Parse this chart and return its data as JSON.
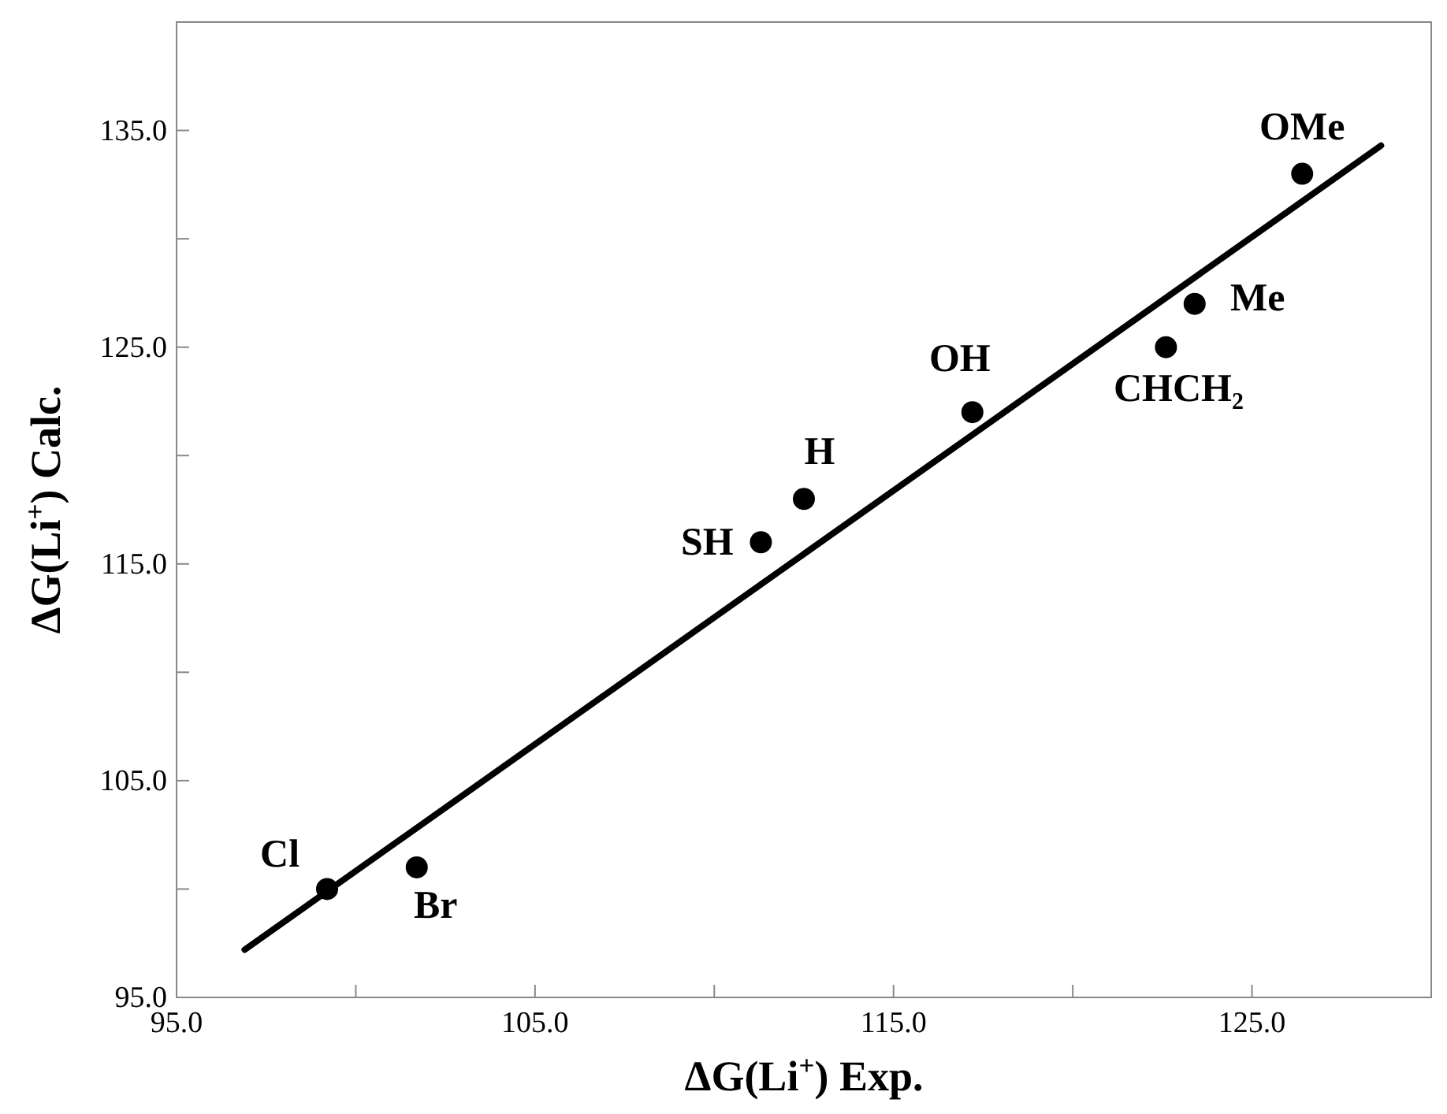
{
  "chart_data": {
    "type": "scatter",
    "xlabel": "ΔG(Li$^{+}$) Exp.",
    "ylabel": "ΔG(Li$^{+}$) Calc.",
    "xlim": [
      95,
      130
    ],
    "ylim": [
      95,
      140
    ],
    "xticks": [
      {
        "value": 95,
        "label": "95.0"
      },
      {
        "value": 100,
        "label": null
      },
      {
        "value": 105,
        "label": "105.0"
      },
      {
        "value": 110,
        "label": null
      },
      {
        "value": 115,
        "label": "115.0"
      },
      {
        "value": 120,
        "label": null
      },
      {
        "value": 125,
        "label": "125.0"
      }
    ],
    "yticks": [
      {
        "value": 95,
        "label": "95.0"
      },
      {
        "value": 100,
        "label": null
      },
      {
        "value": 105,
        "label": "105.0"
      },
      {
        "value": 110,
        "label": null
      },
      {
        "value": 115,
        "label": "115.0"
      },
      {
        "value": 120,
        "label": null
      },
      {
        "value": 125,
        "label": "125.0"
      },
      {
        "value": 130,
        "label": null
      },
      {
        "value": 135,
        "label": "135.0"
      }
    ],
    "grid": false,
    "series": [
      {
        "color": "#000000",
        "marker": "circle",
        "x": [
          99.2,
          101.7,
          111.3,
          112.5,
          117.2,
          122.6,
          123.4,
          126.4
        ],
        "values": [
          100,
          101,
          116,
          118,
          122,
          125,
          127,
          133
        ]
      },
      {
        "type": "line",
        "color": "#000000",
        "marker": "none",
        "line_style": "solid",
        "x": [
          96.9,
          128.6
        ],
        "values": [
          97.2,
          134.3
        ]
      }
    ],
    "annotations": [
      {
        "text": "Cl",
        "x": 99.2,
        "y": 100
      },
      {
        "text": "Br",
        "x": 101.7,
        "y": 101
      },
      {
        "text": "SH",
        "x": 111.3,
        "y": 116
      },
      {
        "text": "H",
        "x": 112.5,
        "y": 118
      },
      {
        "text": "OH",
        "x": 117.2,
        "y": 122
      },
      {
        "text": "CHCH₂",
        "x": 122.6,
        "y": 125
      },
      {
        "text": "Me",
        "x": 123.4,
        "y": 127
      },
      {
        "text": "OMe",
        "x": 126.4,
        "y": 133
      }
    ]
  }
}
